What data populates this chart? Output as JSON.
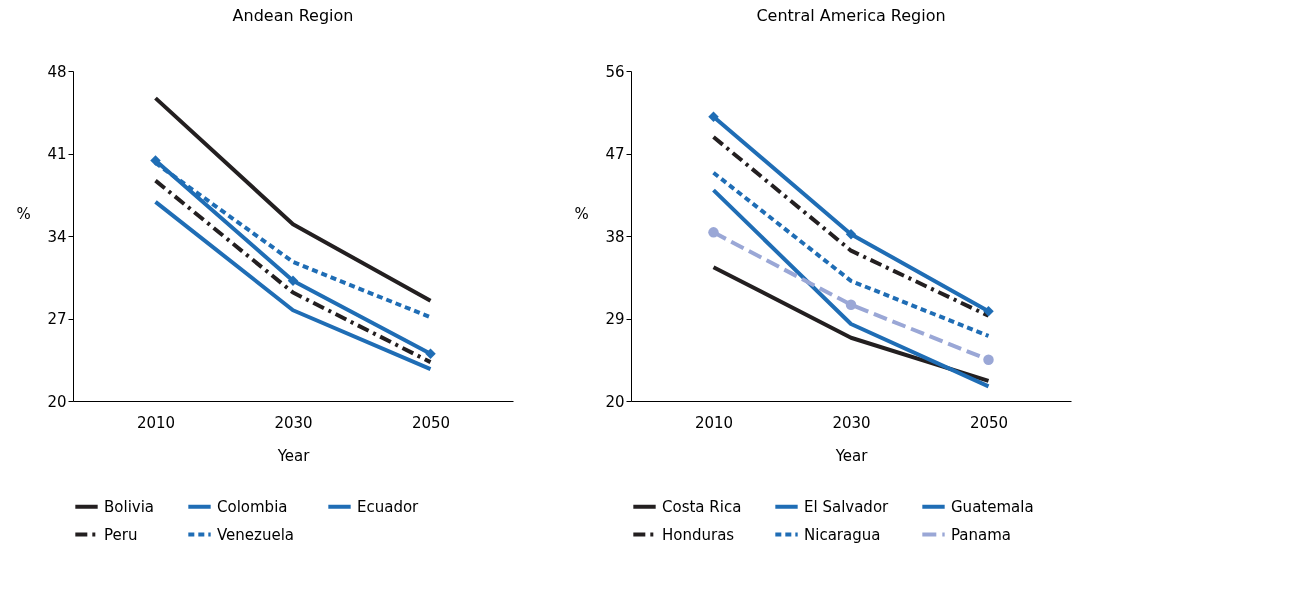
{
  "chart_data": [
    {
      "type": "line",
      "title": "Andean Region",
      "xlabel": "Year",
      "ylabel": "%",
      "categories": [
        "2010",
        "2030",
        "2050"
      ],
      "ylim": [
        20,
        48
      ],
      "yticks": [
        20,
        27,
        34,
        41,
        48
      ],
      "grid": false,
      "legend": "bottom",
      "series": [
        {
          "name": "Bolivia",
          "color": "#231f20",
          "values": [
            45.7,
            35.0,
            28.5
          ],
          "line_style": "solid",
          "marker": "none"
        },
        {
          "name": "Colombia",
          "color": "#1f6db5",
          "values": [
            36.9,
            27.7,
            22.7
          ],
          "line_style": "solid",
          "marker": "none"
        },
        {
          "name": "Ecuador",
          "color": "#1f6db5",
          "values": [
            40.4,
            30.2,
            24.0
          ],
          "line_style": "solid",
          "marker": "diamond"
        },
        {
          "name": "Peru",
          "color": "#231f20",
          "values": [
            38.7,
            29.2,
            23.3
          ],
          "line_style": "dashdot",
          "marker": "none"
        },
        {
          "name": "Venezuela",
          "color": "#1f6db5",
          "values": [
            40.2,
            31.8,
            27.1
          ],
          "line_style": "dashed",
          "marker": "none"
        }
      ]
    },
    {
      "type": "line",
      "title": "Central America Region",
      "xlabel": "Year",
      "ylabel": "%",
      "categories": [
        "2010",
        "2030",
        "2050"
      ],
      "ylim": [
        20,
        56
      ],
      "yticks": [
        20,
        29,
        38,
        47,
        56
      ],
      "grid": false,
      "legend": "bottom",
      "series": [
        {
          "name": "Costa Rica",
          "color": "#231f20",
          "values": [
            34.6,
            26.9,
            22.2
          ],
          "line_style": "solid",
          "marker": "none"
        },
        {
          "name": "El Salvador",
          "color": "#1f6db5",
          "values": [
            43.0,
            28.4,
            21.6
          ],
          "line_style": "solid",
          "marker": "none"
        },
        {
          "name": "Guatemala",
          "color": "#1f6db5",
          "values": [
            51.0,
            38.2,
            29.8
          ],
          "line_style": "solid",
          "marker": "diamond"
        },
        {
          "name": "Honduras",
          "color": "#231f20",
          "values": [
            48.8,
            36.4,
            29.3
          ],
          "line_style": "dashdot",
          "marker": "none"
        },
        {
          "name": "Nicaragua",
          "color": "#1f6db5",
          "values": [
            44.9,
            33.1,
            27.1
          ],
          "line_style": "dashed",
          "marker": "none"
        },
        {
          "name": "Panama",
          "color": "#9aa7d6",
          "values": [
            38.4,
            30.5,
            24.5
          ],
          "line_style": "longdash",
          "marker": "circle"
        }
      ]
    }
  ]
}
